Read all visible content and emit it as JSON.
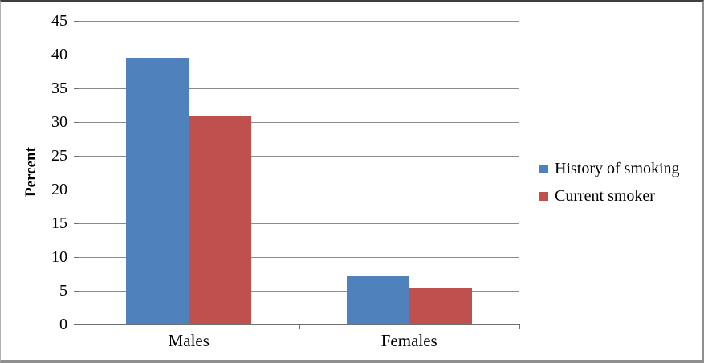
{
  "chart_data": {
    "type": "bar",
    "categories": [
      "Males",
      "Females"
    ],
    "series": [
      {
        "name": "History of smoking",
        "color": "#4F81BD",
        "values": [
          39.5,
          7.2
        ]
      },
      {
        "name": "Current smoker",
        "color": "#C0504D",
        "values": [
          31.0,
          5.5
        ]
      }
    ],
    "xlabel": "",
    "ylabel": "Percent",
    "ylim": [
      0,
      45
    ],
    "yticks": [
      0,
      5,
      10,
      15,
      20,
      25,
      30,
      35,
      40,
      45
    ],
    "grid": true,
    "legend_position": "right"
  }
}
